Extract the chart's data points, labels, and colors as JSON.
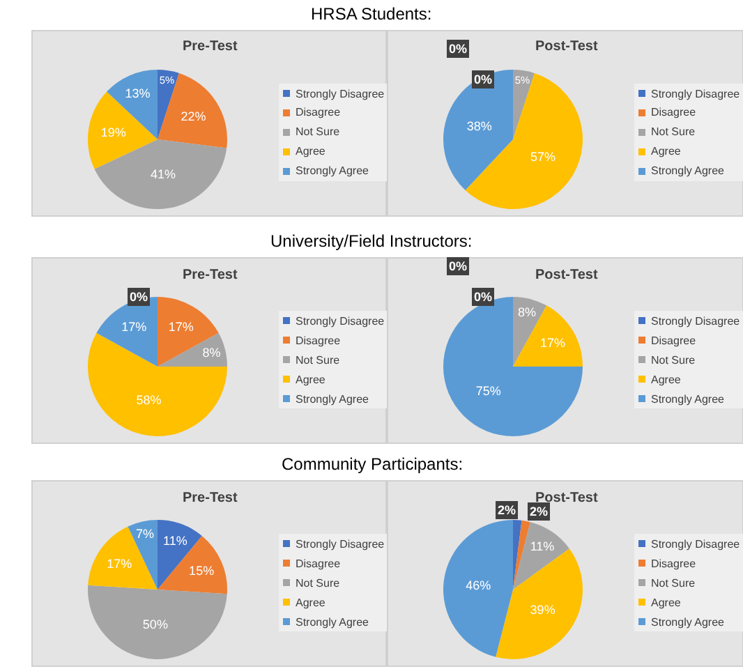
{
  "chart_data": [
    {
      "type": "pie",
      "annotations": [
        "HRSA Students:"
      ],
      "title": "Pre-Test",
      "categories": [
        "Strongly Disagree",
        "Disagree",
        "Not Sure",
        "Agree",
        "Strongly Agree"
      ],
      "values": [
        5,
        22,
        41,
        19,
        13
      ],
      "value_labels": [
        "5%",
        "22%",
        "41%",
        "19%",
        "13%"
      ],
      "colors": [
        "#4472c4",
        "#ed7d31",
        "#a5a5a5",
        "#ffc000",
        "#5b9bd5"
      ],
      "legend": "right"
    },
    {
      "type": "pie",
      "title": "Post-Test",
      "categories": [
        "Strongly Disagree",
        "Disagree",
        "Not Sure",
        "Agree",
        "Strongly Agree"
      ],
      "values": [
        0,
        0,
        5,
        57,
        38
      ],
      "value_labels": [
        "0%",
        "0%",
        "5%",
        "57%",
        "38%"
      ],
      "colors": [
        "#4472c4",
        "#ed7d31",
        "#a5a5a5",
        "#ffc000",
        "#5b9bd5"
      ],
      "legend": "right"
    },
    {
      "type": "pie",
      "annotations": [
        "University/Field Instructors:"
      ],
      "title": "Pre-Test",
      "categories": [
        "Strongly Disagree",
        "Disagree",
        "Not Sure",
        "Agree",
        "Strongly Agree"
      ],
      "values": [
        0,
        17,
        8,
        58,
        17
      ],
      "value_labels": [
        "0%",
        "17%",
        "8%",
        "58%",
        "17%"
      ],
      "colors": [
        "#4472c4",
        "#ed7d31",
        "#a5a5a5",
        "#ffc000",
        "#5b9bd5"
      ],
      "legend": "right"
    },
    {
      "type": "pie",
      "title": "Post-Test",
      "categories": [
        "Strongly Disagree",
        "Disagree",
        "Not Sure",
        "Agree",
        "Strongly Agree"
      ],
      "values": [
        0,
        0,
        8,
        17,
        75
      ],
      "value_labels": [
        "0%",
        "0%",
        "8%",
        "17%",
        "75%"
      ],
      "colors": [
        "#4472c4",
        "#ed7d31",
        "#a5a5a5",
        "#ffc000",
        "#5b9bd5"
      ],
      "legend": "right"
    },
    {
      "type": "pie",
      "annotations": [
        "Community Participants:"
      ],
      "title": "Pre-Test",
      "categories": [
        "Strongly Disagree",
        "Disagree",
        "Not Sure",
        "Agree",
        "Strongly Agree"
      ],
      "values": [
        11,
        15,
        50,
        17,
        7
      ],
      "value_labels": [
        "11%",
        "15%",
        "50%",
        "17%",
        "7%"
      ],
      "colors": [
        "#4472c4",
        "#ed7d31",
        "#a5a5a5",
        "#ffc000",
        "#5b9bd5"
      ],
      "legend": "right"
    },
    {
      "type": "pie",
      "title": "Post-Test",
      "categories": [
        "Strongly Disagree",
        "Disagree",
        "Not Sure",
        "Agree",
        "Strongly Agree"
      ],
      "values": [
        2,
        2,
        11,
        39,
        46
      ],
      "value_labels": [
        "2%",
        "2%",
        "11%",
        "39%",
        "46%"
      ],
      "colors": [
        "#4472c4",
        "#ed7d31",
        "#a5a5a5",
        "#ffc000",
        "#5b9bd5"
      ],
      "legend": "right"
    }
  ]
}
